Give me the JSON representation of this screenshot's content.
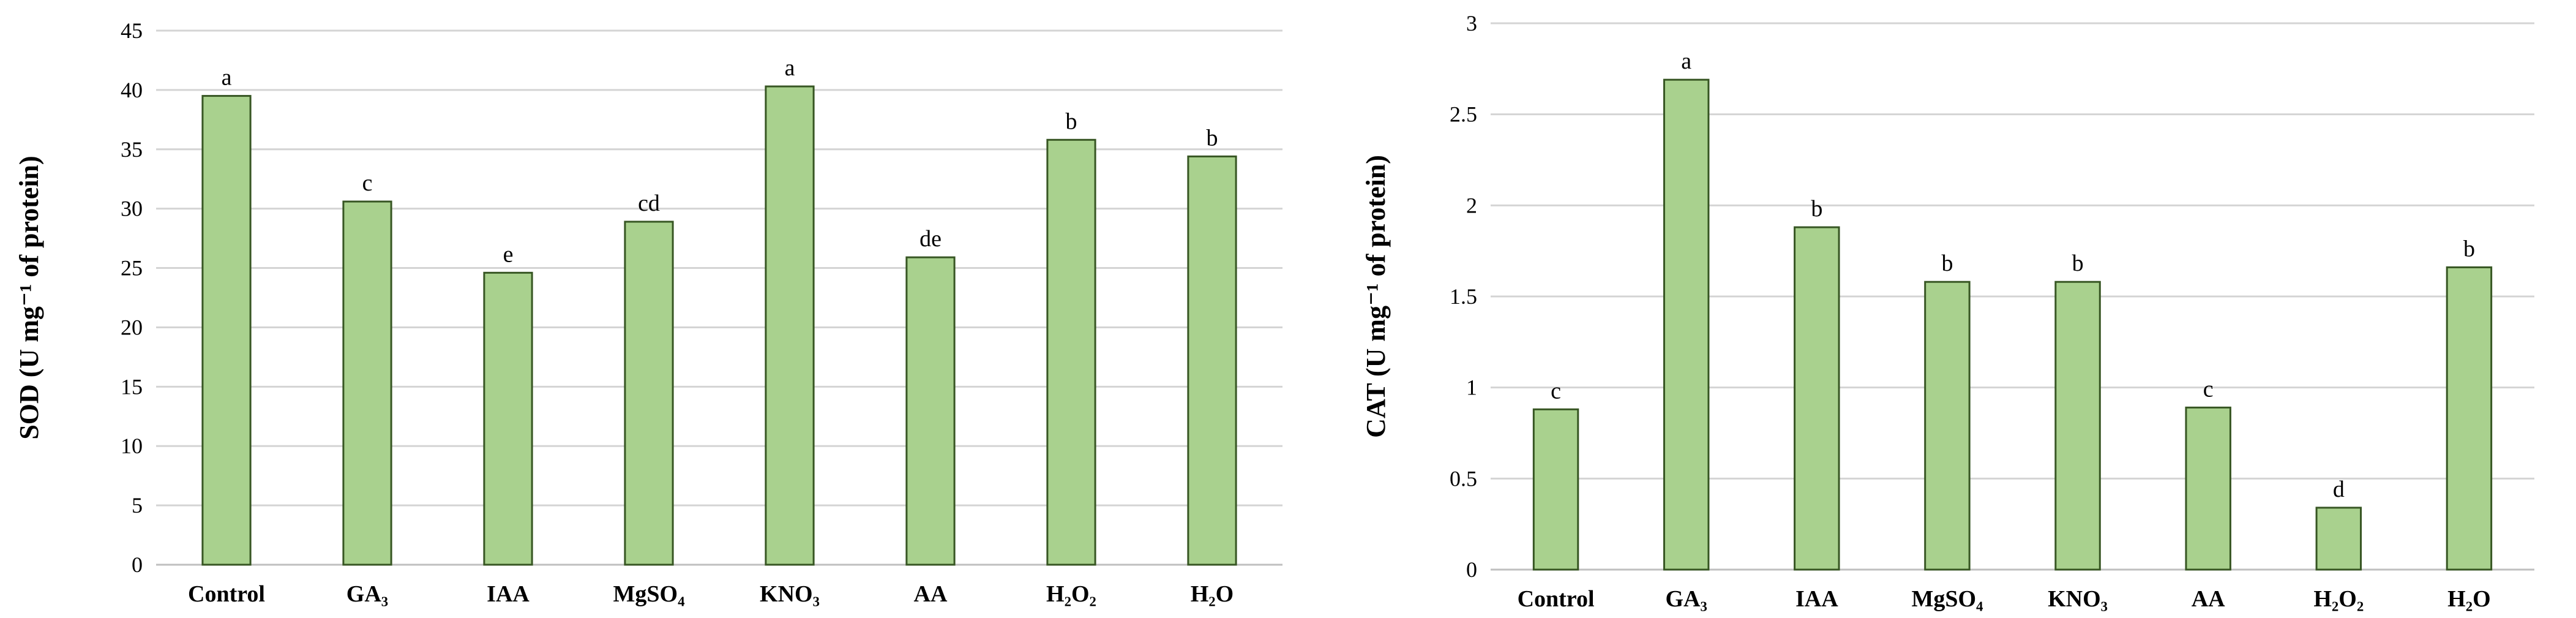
{
  "colors": {
    "bar_fill": "#a9d18e",
    "bar_stroke": "#375623",
    "gridline": "#d4d4d4"
  },
  "chart_data": [
    {
      "type": "bar",
      "title": "",
      "xlabel": "",
      "ylabel": "SOD (U mg⁻¹ of protein)",
      "categories": [
        "Control",
        "GA₃",
        "IAA",
        "MgSO₄",
        "KNO₃",
        "AA",
        "H₂O₂",
        "H₂O"
      ],
      "values": [
        39.5,
        30.6,
        24.6,
        28.9,
        40.3,
        25.9,
        35.8,
        34.4
      ],
      "labels": [
        "a",
        "c",
        "e",
        "cd",
        "a",
        "de",
        "b",
        "b"
      ],
      "ylim": [
        0,
        45
      ],
      "yticks": [
        0,
        5,
        10,
        15,
        20,
        25,
        30,
        35,
        40,
        45
      ],
      "grid": true
    },
    {
      "type": "bar",
      "title": "",
      "xlabel": "",
      "ylabel": "CAT (U mg⁻¹ of protein)",
      "categories": [
        "Control",
        "GA₃",
        "IAA",
        "MgSO₄",
        "KNO₃",
        "AA",
        "H₂O₂",
        "H₂O"
      ],
      "values": [
        0.88,
        2.69,
        1.88,
        1.58,
        1.58,
        0.89,
        0.34,
        1.66
      ],
      "labels": [
        "c",
        "a",
        "b",
        "b",
        "b",
        "c",
        "d",
        "b"
      ],
      "ylim": [
        0,
        3
      ],
      "yticks": [
        "0",
        "0.5",
        "1",
        "1.5",
        "2",
        "2.5",
        "3"
      ],
      "grid": true
    }
  ]
}
